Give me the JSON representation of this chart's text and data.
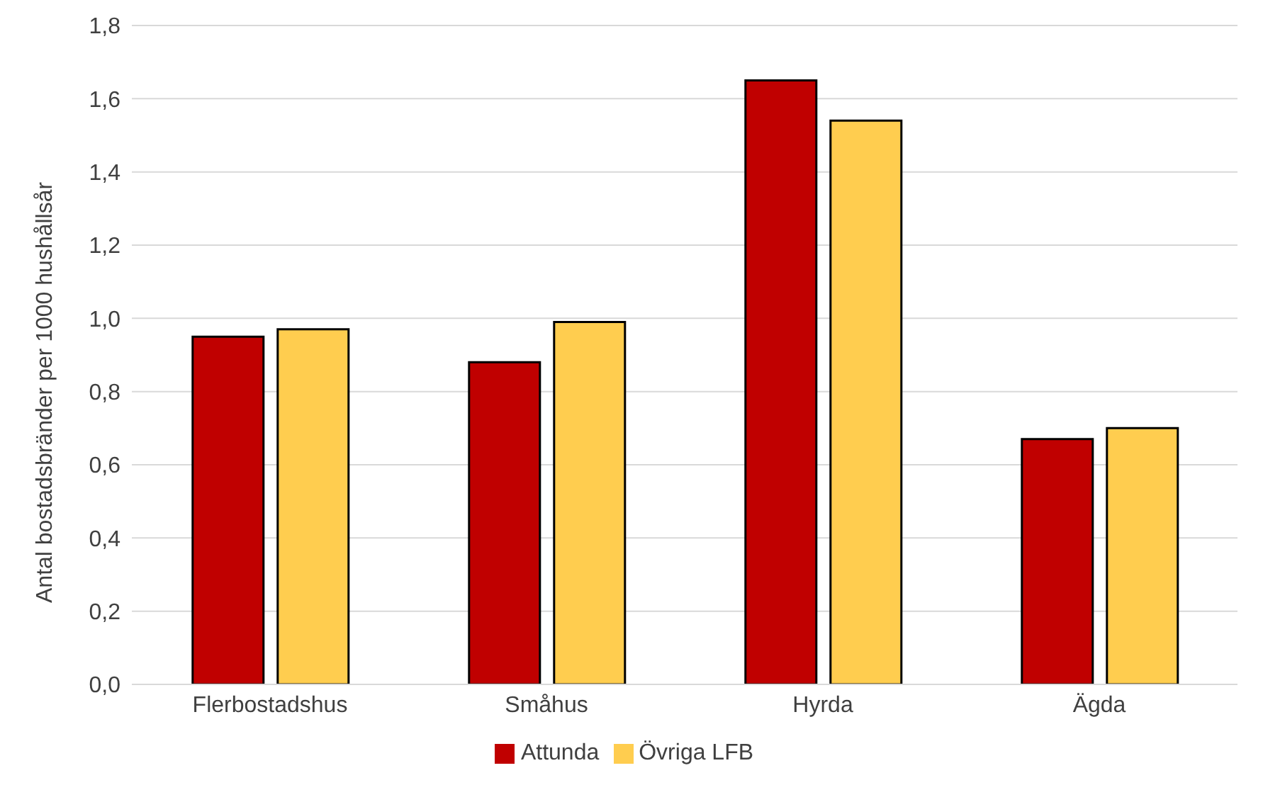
{
  "chart_data": {
    "type": "bar",
    "ylabel": "Antal bostadsbränder per 1000 hushållsår",
    "categories": [
      "Flerbostadshus",
      "Småhus",
      "Hyrda",
      "Ägda"
    ],
    "series": [
      {
        "name": "Attunda",
        "color": "#c00000",
        "values": [
          0.95,
          0.88,
          1.65,
          0.67
        ]
      },
      {
        "name": "Övriga LFB",
        "color": "#ffcd4f",
        "values": [
          0.97,
          0.99,
          1.54,
          0.7
        ]
      }
    ],
    "ylim": [
      0,
      1.8
    ],
    "yticks": [
      {
        "value": 0,
        "label": "0,0"
      },
      {
        "value": 0.2,
        "label": "0,2"
      },
      {
        "value": 0.4,
        "label": "0,4"
      },
      {
        "value": 0.6,
        "label": "0,6"
      },
      {
        "value": 0.8,
        "label": "0,8"
      },
      {
        "value": 1,
        "label": "1,0"
      },
      {
        "value": 1.2,
        "label": "1,2"
      },
      {
        "value": 1.4,
        "label": "1,4"
      },
      {
        "value": 1.6,
        "label": "1,6"
      },
      {
        "value": 1.8,
        "label": "1,8"
      }
    ],
    "grid": "y",
    "legend": "bottom"
  }
}
